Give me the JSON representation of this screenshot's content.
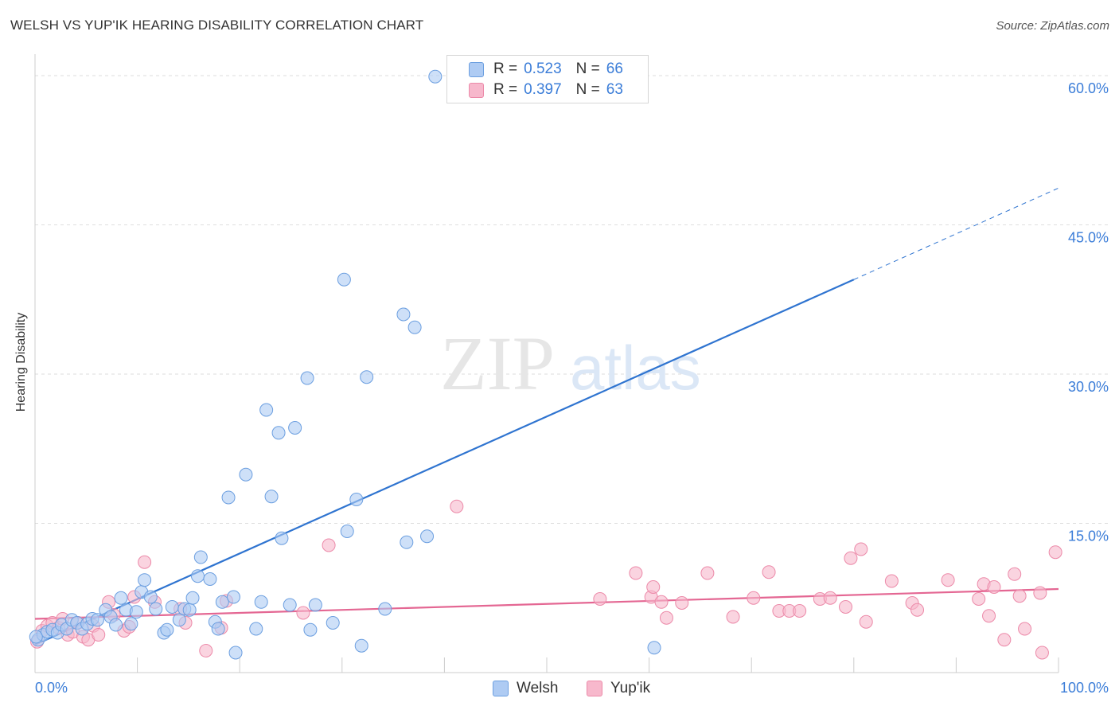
{
  "header": {
    "title": "WELSH VS YUP'IK HEARING DISABILITY CORRELATION CHART",
    "source": "Source: ZipAtlas.com"
  },
  "watermark": {
    "zip": "ZIP",
    "atlas": "atlas"
  },
  "colors": {
    "welsh_fill": "#aecbf3",
    "welsh_stroke": "#6c9fe0",
    "welsh_line": "#2f74d0",
    "yupik_fill": "#f7b8cc",
    "yupik_stroke": "#ec8aa9",
    "yupik_line": "#e46793",
    "tick_label": "#3b7dd8",
    "grid": "#dedede"
  },
  "legend": {
    "rows": [
      {
        "r_label": "R =",
        "r_value": "0.523",
        "n_label": "N =",
        "n_value": "66"
      },
      {
        "r_label": "R =",
        "r_value": "0.397",
        "n_label": "N =",
        "n_value": "63"
      }
    ]
  },
  "bottom_legend": {
    "welsh": "Welsh",
    "yupik": "Yup'ik"
  },
  "chart_data": {
    "type": "scatter",
    "title": "WELSH VS YUP'IK HEARING DISABILITY CORRELATION CHART",
    "xlabel": "",
    "ylabel": "Hearing Disability",
    "xlim": [
      0,
      100
    ],
    "ylim": [
      0,
      62
    ],
    "x_tick_labels": [
      "0.0%",
      "100.0%"
    ],
    "y_ticks": [
      15,
      30,
      45,
      60
    ],
    "y_tick_labels": [
      "15.0%",
      "30.0%",
      "45.0%",
      "60.0%"
    ],
    "grid": true,
    "legend_position": "top-center",
    "series": [
      {
        "name": "Welsh",
        "R": 0.523,
        "N": 66,
        "trend": {
          "x0": 0,
          "y0": 2.8,
          "x1": 80,
          "y1": 39.5,
          "dash_to_x": 100,
          "dash_to_y": 48.7
        },
        "points": [
          [
            0.3,
            3.3
          ],
          [
            0.8,
            3.8
          ],
          [
            1.2,
            4.1
          ],
          [
            1.7,
            4.3
          ],
          [
            2.2,
            4.0
          ],
          [
            2.6,
            4.8
          ],
          [
            3.1,
            4.4
          ],
          [
            3.6,
            5.3
          ],
          [
            4.1,
            5.0
          ],
          [
            4.6,
            4.4
          ],
          [
            5.1,
            4.9
          ],
          [
            5.6,
            5.4
          ],
          [
            6.1,
            5.3
          ],
          [
            6.9,
            6.3
          ],
          [
            7.4,
            5.6
          ],
          [
            7.9,
            4.8
          ],
          [
            8.4,
            7.5
          ],
          [
            8.9,
            6.3
          ],
          [
            9.4,
            4.9
          ],
          [
            9.9,
            6.1
          ],
          [
            10.4,
            8.1
          ],
          [
            10.7,
            9.3
          ],
          [
            11.3,
            7.6
          ],
          [
            11.8,
            6.4
          ],
          [
            12.6,
            4.0
          ],
          [
            12.9,
            4.3
          ],
          [
            13.4,
            6.6
          ],
          [
            14.1,
            5.3
          ],
          [
            14.6,
            6.4
          ],
          [
            15.1,
            6.3
          ],
          [
            15.4,
            7.5
          ],
          [
            15.9,
            9.7
          ],
          [
            16.2,
            11.6
          ],
          [
            17.1,
            9.4
          ],
          [
            17.6,
            5.1
          ],
          [
            17.9,
            4.4
          ],
          [
            18.3,
            7.1
          ],
          [
            18.9,
            17.6
          ],
          [
            19.4,
            7.6
          ],
          [
            19.6,
            2.0
          ],
          [
            20.6,
            19.9
          ],
          [
            21.6,
            4.4
          ],
          [
            22.1,
            7.1
          ],
          [
            22.6,
            26.4
          ],
          [
            23.1,
            17.7
          ],
          [
            23.8,
            24.1
          ],
          [
            24.1,
            13.5
          ],
          [
            24.9,
            6.8
          ],
          [
            25.4,
            24.6
          ],
          [
            26.6,
            29.6
          ],
          [
            26.9,
            4.3
          ],
          [
            27.4,
            6.8
          ],
          [
            29.1,
            5.0
          ],
          [
            30.2,
            39.5
          ],
          [
            30.5,
            14.2
          ],
          [
            31.4,
            17.4
          ],
          [
            31.9,
            2.7
          ],
          [
            32.4,
            29.7
          ],
          [
            34.2,
            6.4
          ],
          [
            36.0,
            36.0
          ],
          [
            36.3,
            13.1
          ],
          [
            37.1,
            34.7
          ],
          [
            38.3,
            13.7
          ],
          [
            39.1,
            59.9
          ],
          [
            60.5,
            2.5
          ],
          [
            0.1,
            3.6
          ]
        ]
      },
      {
        "name": "Yup'ik",
        "R": 0.397,
        "N": 63,
        "trend": {
          "x0": 0,
          "y0": 5.4,
          "x1": 100,
          "y1": 8.4
        },
        "points": [
          [
            0.2,
            3.1
          ],
          [
            0.7,
            4.2
          ],
          [
            1.2,
            4.7
          ],
          [
            1.7,
            5.0
          ],
          [
            2.3,
            4.5
          ],
          [
            2.7,
            5.4
          ],
          [
            3.2,
            3.8
          ],
          [
            3.7,
            4.1
          ],
          [
            4.2,
            5.0
          ],
          [
            4.7,
            3.6
          ],
          [
            5.2,
            3.3
          ],
          [
            5.7,
            4.7
          ],
          [
            6.2,
            3.8
          ],
          [
            7.2,
            7.1
          ],
          [
            7.7,
            5.8
          ],
          [
            8.7,
            4.2
          ],
          [
            9.2,
            4.6
          ],
          [
            9.7,
            7.6
          ],
          [
            10.7,
            11.1
          ],
          [
            11.7,
            7.1
          ],
          [
            14.2,
            6.4
          ],
          [
            14.7,
            5.0
          ],
          [
            16.7,
            2.2
          ],
          [
            18.2,
            4.5
          ],
          [
            18.7,
            7.2
          ],
          [
            26.2,
            6.0
          ],
          [
            28.7,
            12.8
          ],
          [
            41.2,
            16.7
          ],
          [
            55.2,
            7.4
          ],
          [
            58.7,
            10.0
          ],
          [
            60.2,
            7.6
          ],
          [
            60.4,
            8.6
          ],
          [
            61.2,
            7.1
          ],
          [
            61.7,
            5.5
          ],
          [
            63.2,
            7.0
          ],
          [
            65.7,
            10.0
          ],
          [
            68.2,
            5.6
          ],
          [
            70.2,
            7.5
          ],
          [
            71.7,
            10.1
          ],
          [
            72.7,
            6.2
          ],
          [
            73.7,
            6.2
          ],
          [
            74.7,
            6.2
          ],
          [
            76.7,
            7.4
          ],
          [
            77.7,
            7.5
          ],
          [
            79.2,
            6.6
          ],
          [
            79.7,
            11.5
          ],
          [
            80.7,
            12.4
          ],
          [
            81.2,
            5.1
          ],
          [
            83.7,
            9.2
          ],
          [
            85.7,
            7.0
          ],
          [
            86.2,
            6.3
          ],
          [
            89.2,
            9.3
          ],
          [
            92.2,
            7.4
          ],
          [
            92.7,
            8.9
          ],
          [
            93.2,
            5.7
          ],
          [
            93.7,
            8.6
          ],
          [
            94.7,
            3.3
          ],
          [
            95.7,
            9.9
          ],
          [
            96.2,
            7.7
          ],
          [
            96.7,
            4.4
          ],
          [
            98.2,
            8.0
          ],
          [
            98.4,
            2.0
          ],
          [
            99.7,
            12.1
          ]
        ]
      }
    ]
  }
}
